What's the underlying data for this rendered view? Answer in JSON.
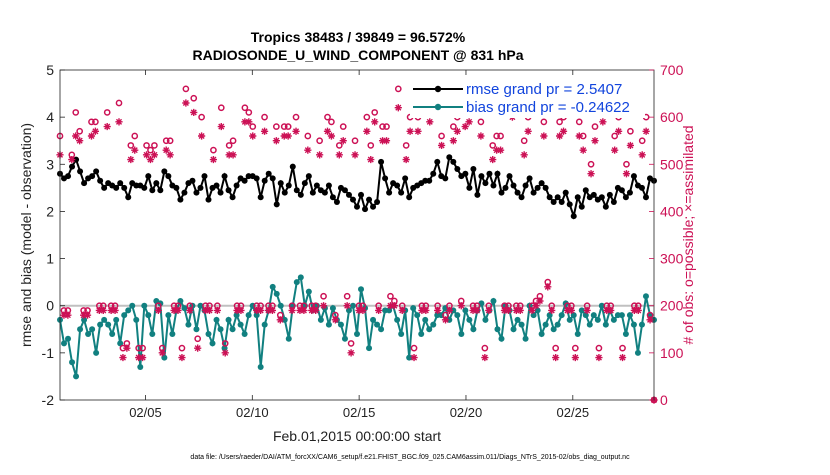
{
  "chart_data": {
    "type": "line",
    "title_line1": "Tropics 38483 / 39849 = 96.572%",
    "title_line2": "RADIOSONDE_U_WIND_COMPONENT @ 831 hPa",
    "xlabel": "Feb.01,2015 00:00:00 start",
    "ylabel_left": "rmse and bias (model - observation)",
    "ylabel_right": "# of obs: o=possible; ×=assimilated",
    "footer": "data file: /Users/raeder/DAI/ATM_forcXX/CAM6_setup/f.e21.FHIST_BGC.f09_025.CAM6assim.011/Diags_NTrS_2015-02/obs_diag_output.nc",
    "xlim": [
      1,
      28.8
    ],
    "ylim_left": [
      -2,
      5
    ],
    "ylim_right": [
      0,
      700
    ],
    "x_ticks": [
      5,
      10,
      15,
      20,
      25
    ],
    "x_tick_labels": [
      "02/05",
      "02/10",
      "02/15",
      "02/20",
      "02/25"
    ],
    "y_left_ticks": [
      -2,
      -1,
      0,
      1,
      2,
      3,
      4,
      5
    ],
    "y_left_tick_labels": [
      "-2",
      "-1",
      "0",
      "1",
      "2",
      "3",
      "4",
      "5"
    ],
    "y_right_ticks": [
      0,
      100,
      200,
      300,
      400,
      500,
      600,
      700
    ],
    "y_right_tick_labels": [
      "0",
      "100",
      "200",
      "300",
      "400",
      "500",
      "600",
      "700"
    ],
    "legend": [
      {
        "label": "rmse grand pr = 2.5407",
        "color": "#000000"
      },
      {
        "label": "bias grand pr = -0.24622",
        "color": "#118080"
      }
    ],
    "series": [
      {
        "name": "rmse",
        "axis": "left",
        "color": "#000000",
        "values": [
          2.8,
          2.7,
          2.75,
          2.95,
          3.1,
          2.85,
          2.6,
          2.7,
          2.75,
          2.85,
          2.65,
          2.5,
          2.6,
          2.55,
          2.5,
          2.6,
          2.5,
          2.3,
          2.6,
          2.55,
          2.55,
          2.5,
          2.75,
          2.45,
          2.6,
          2.45,
          2.85,
          2.75,
          2.55,
          2.5,
          2.25,
          2.4,
          2.6,
          2.65,
          2.4,
          2.5,
          2.75,
          2.25,
          2.5,
          2.55,
          2.4,
          2.75,
          2.45,
          2.3,
          2.55,
          2.7,
          2.65,
          2.75,
          2.75,
          2.7,
          2.3,
          2.65,
          2.8,
          2.7,
          2.15,
          2.6,
          2.4,
          2.55,
          2.95,
          2.45,
          2.35,
          2.6,
          2.75,
          2.4,
          2.55,
          2.45,
          2.4,
          2.55,
          2.3,
          2.2,
          2.5,
          2.45,
          2.35,
          2.25,
          2.1,
          2.35,
          2.05,
          2.25,
          2.1,
          2.2,
          3.05,
          2.7,
          2.4,
          2.6,
          2.55,
          2.4,
          2.7,
          2.3,
          2.5,
          2.55,
          2.6,
          2.65,
          2.65,
          2.8,
          3.05,
          2.75,
          2.7,
          3.15,
          3.05,
          2.9,
          2.75,
          2.8,
          2.5,
          2.9,
          2.35,
          2.75,
          2.6,
          2.8,
          2.55,
          2.8,
          2.4,
          2.5,
          2.75,
          2.55,
          2.4,
          2.3,
          2.55,
          2.7,
          2.4,
          2.5,
          2.6,
          2.5,
          2.3,
          2.2,
          2.3,
          2.2,
          2.4,
          2.15,
          1.9,
          2.3,
          2.1,
          2.45,
          2.3,
          2.35,
          2.25,
          2.3,
          2.1,
          2.35,
          2.2,
          2.5,
          2.45,
          2.3,
          2.4,
          2.75,
          2.55,
          2.5,
          2.3,
          2.7,
          2.65
        ]
      },
      {
        "name": "bias",
        "axis": "left",
        "color": "#118080",
        "values": [
          -0.3,
          -0.8,
          -0.7,
          -1.2,
          -1.5,
          -0.5,
          -0.3,
          -0.6,
          -0.5,
          -1.0,
          -0.4,
          -0.3,
          -0.4,
          -0.6,
          -0.3,
          -0.8,
          -0.2,
          -0.1,
          0.0,
          -0.3,
          -1.3,
          0.0,
          -0.2,
          -0.6,
          0.1,
          0.05,
          -1.1,
          -0.2,
          -0.6,
          -0.1,
          0.1,
          -0.05,
          -0.4,
          0.0,
          -0.5,
          0.0,
          -0.1,
          -0.6,
          -0.8,
          -0.3,
          -0.5,
          -0.9,
          -0.3,
          -0.5,
          -0.2,
          -0.4,
          -0.6,
          -0.2,
          0.0,
          -0.2,
          -1.3,
          -0.4,
          -0.1,
          0.4,
          0.25,
          0.0,
          -0.3,
          -0.7,
          0.0,
          0.5,
          0.6,
          0.0,
          0.3,
          -0.1,
          0.0,
          -0.3,
          -0.05,
          -0.4,
          -0.05,
          -0.3,
          -0.4,
          -0.7,
          -0.1,
          0.0,
          -0.6,
          0.35,
          -0.05,
          -0.9,
          -0.3,
          -0.4,
          -0.5,
          -0.1,
          -0.1,
          0.0,
          -0.3,
          -0.6,
          -0.1,
          -1.1,
          -0.05,
          -0.2,
          -0.6,
          -0.3,
          -0.5,
          -0.4,
          -0.2,
          -0.2,
          -0.05,
          -0.3,
          -0.1,
          -0.2,
          -0.6,
          -0.1,
          -0.3,
          -0.5,
          -0.1,
          0.05,
          -0.3,
          -0.1,
          0.1,
          -0.5,
          -0.7,
          0.0,
          -0.1,
          -0.5,
          -0.3,
          -0.4,
          -0.7,
          0.0,
          -0.2,
          -0.1,
          -0.6,
          -0.4,
          -0.2,
          -0.5,
          -0.4,
          -0.2,
          0.05,
          -0.3,
          -0.2,
          -0.6,
          -0.1,
          -0.2,
          -0.4,
          -0.2,
          -0.3,
          0.0,
          -0.4,
          -0.1,
          -0.3,
          -0.2,
          -0.2,
          -0.6,
          -0.2,
          -0.4,
          -1.0,
          -0.4,
          0.2,
          -0.2,
          -0.3
        ]
      },
      {
        "name": "obs possible",
        "axis": "right",
        "color": "#cc1155",
        "marker": "o",
        "values": [
          560,
          190,
          190,
          520,
          610,
          570,
          190,
          190,
          590,
          590,
          200,
          200,
          610,
          200,
          200,
          630,
          110,
          120,
          540,
          560,
          110,
          110,
          540,
          530,
          540,
          200,
          110,
          550,
          550,
          200,
          200,
          110,
          660,
          200,
          640,
          130,
          600,
          200,
          200,
          530,
          200,
          620,
          120,
          540,
          550,
          200,
          200,
          620,
          610,
          580,
          200,
          200,
          600,
          200,
          200,
          580,
          180,
          580,
          580,
          200,
          600,
          200,
          200,
          560,
          200,
          200,
          550,
          220,
          600,
          590,
          180,
          540,
          580,
          220,
          120,
          550,
          200,
          200,
          600,
          540,
          610,
          200,
          580,
          580,
          220,
          210,
          660,
          200,
          540,
          600,
          110,
          600,
          200,
          200,
          620,
          660,
          200,
          560,
          180,
          200,
          580,
          600,
          210,
          610,
          620,
          200,
          200,
          590,
          110,
          200,
          540,
          560,
          560,
          200,
          200,
          630,
          200,
          200,
          550,
          600,
          200,
          210,
          220,
          590,
          250,
          200,
          110,
          590,
          600,
          200,
          200,
          110,
          590,
          560,
          200,
          500,
          580,
          110,
          620,
          200,
          200,
          560,
          600,
          110,
          500,
          570,
          200,
          200,
          550,
          600,
          180,
          0
        ]
      },
      {
        "name": "obs assimilated",
        "axis": "right",
        "color": "#cc1155",
        "marker": "*",
        "values": [
          520,
          180,
          180,
          510,
          560,
          550,
          180,
          180,
          560,
          570,
          190,
          190,
          580,
          190,
          190,
          590,
          90,
          110,
          510,
          530,
          90,
          90,
          520,
          510,
          520,
          190,
          100,
          530,
          520,
          190,
          190,
          90,
          630,
          190,
          610,
          110,
          560,
          190,
          190,
          510,
          190,
          580,
          100,
          520,
          520,
          190,
          190,
          590,
          590,
          560,
          190,
          190,
          570,
          190,
          190,
          550,
          170,
          560,
          560,
          190,
          570,
          190,
          190,
          530,
          190,
          190,
          520,
          200,
          570,
          560,
          170,
          520,
          550,
          200,
          100,
          520,
          190,
          190,
          570,
          510,
          590,
          190,
          550,
          550,
          200,
          200,
          620,
          190,
          510,
          570,
          90,
          570,
          190,
          190,
          590,
          620,
          190,
          540,
          170,
          190,
          550,
          570,
          200,
          580,
          590,
          190,
          190,
          560,
          90,
          190,
          510,
          530,
          530,
          190,
          190,
          600,
          190,
          190,
          520,
          570,
          190,
          200,
          210,
          560,
          240,
          190,
          90,
          560,
          570,
          190,
          190,
          90,
          560,
          530,
          190,
          480,
          550,
          90,
          590,
          190,
          190,
          530,
          570,
          90,
          480,
          540,
          190,
          190,
          520,
          570,
          170,
          0
        ]
      }
    ]
  }
}
